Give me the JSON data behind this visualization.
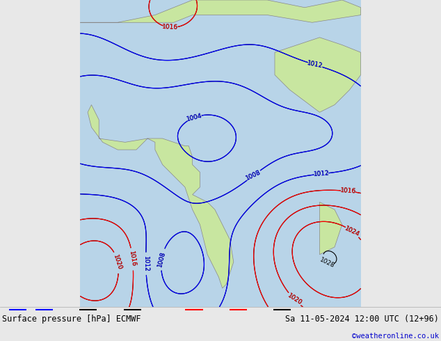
{
  "title_left": "Surface pressure [hPa] ECMWF",
  "title_right": "Sa 11-05-2024 12:00 UTC (12+96)",
  "credit": "©weatheronline.co.uk",
  "bg_color": "#e8e8e8",
  "land_color": "#c8e6a0",
  "ocean_color": "#ddeeff",
  "fig_width": 6.34,
  "fig_height": 4.9,
  "dpi": 100,
  "bottom_bar_height": 0.1,
  "label_fontsize": 8.5,
  "credit_fontsize": 7.5,
  "credit_color": "#0000cc"
}
